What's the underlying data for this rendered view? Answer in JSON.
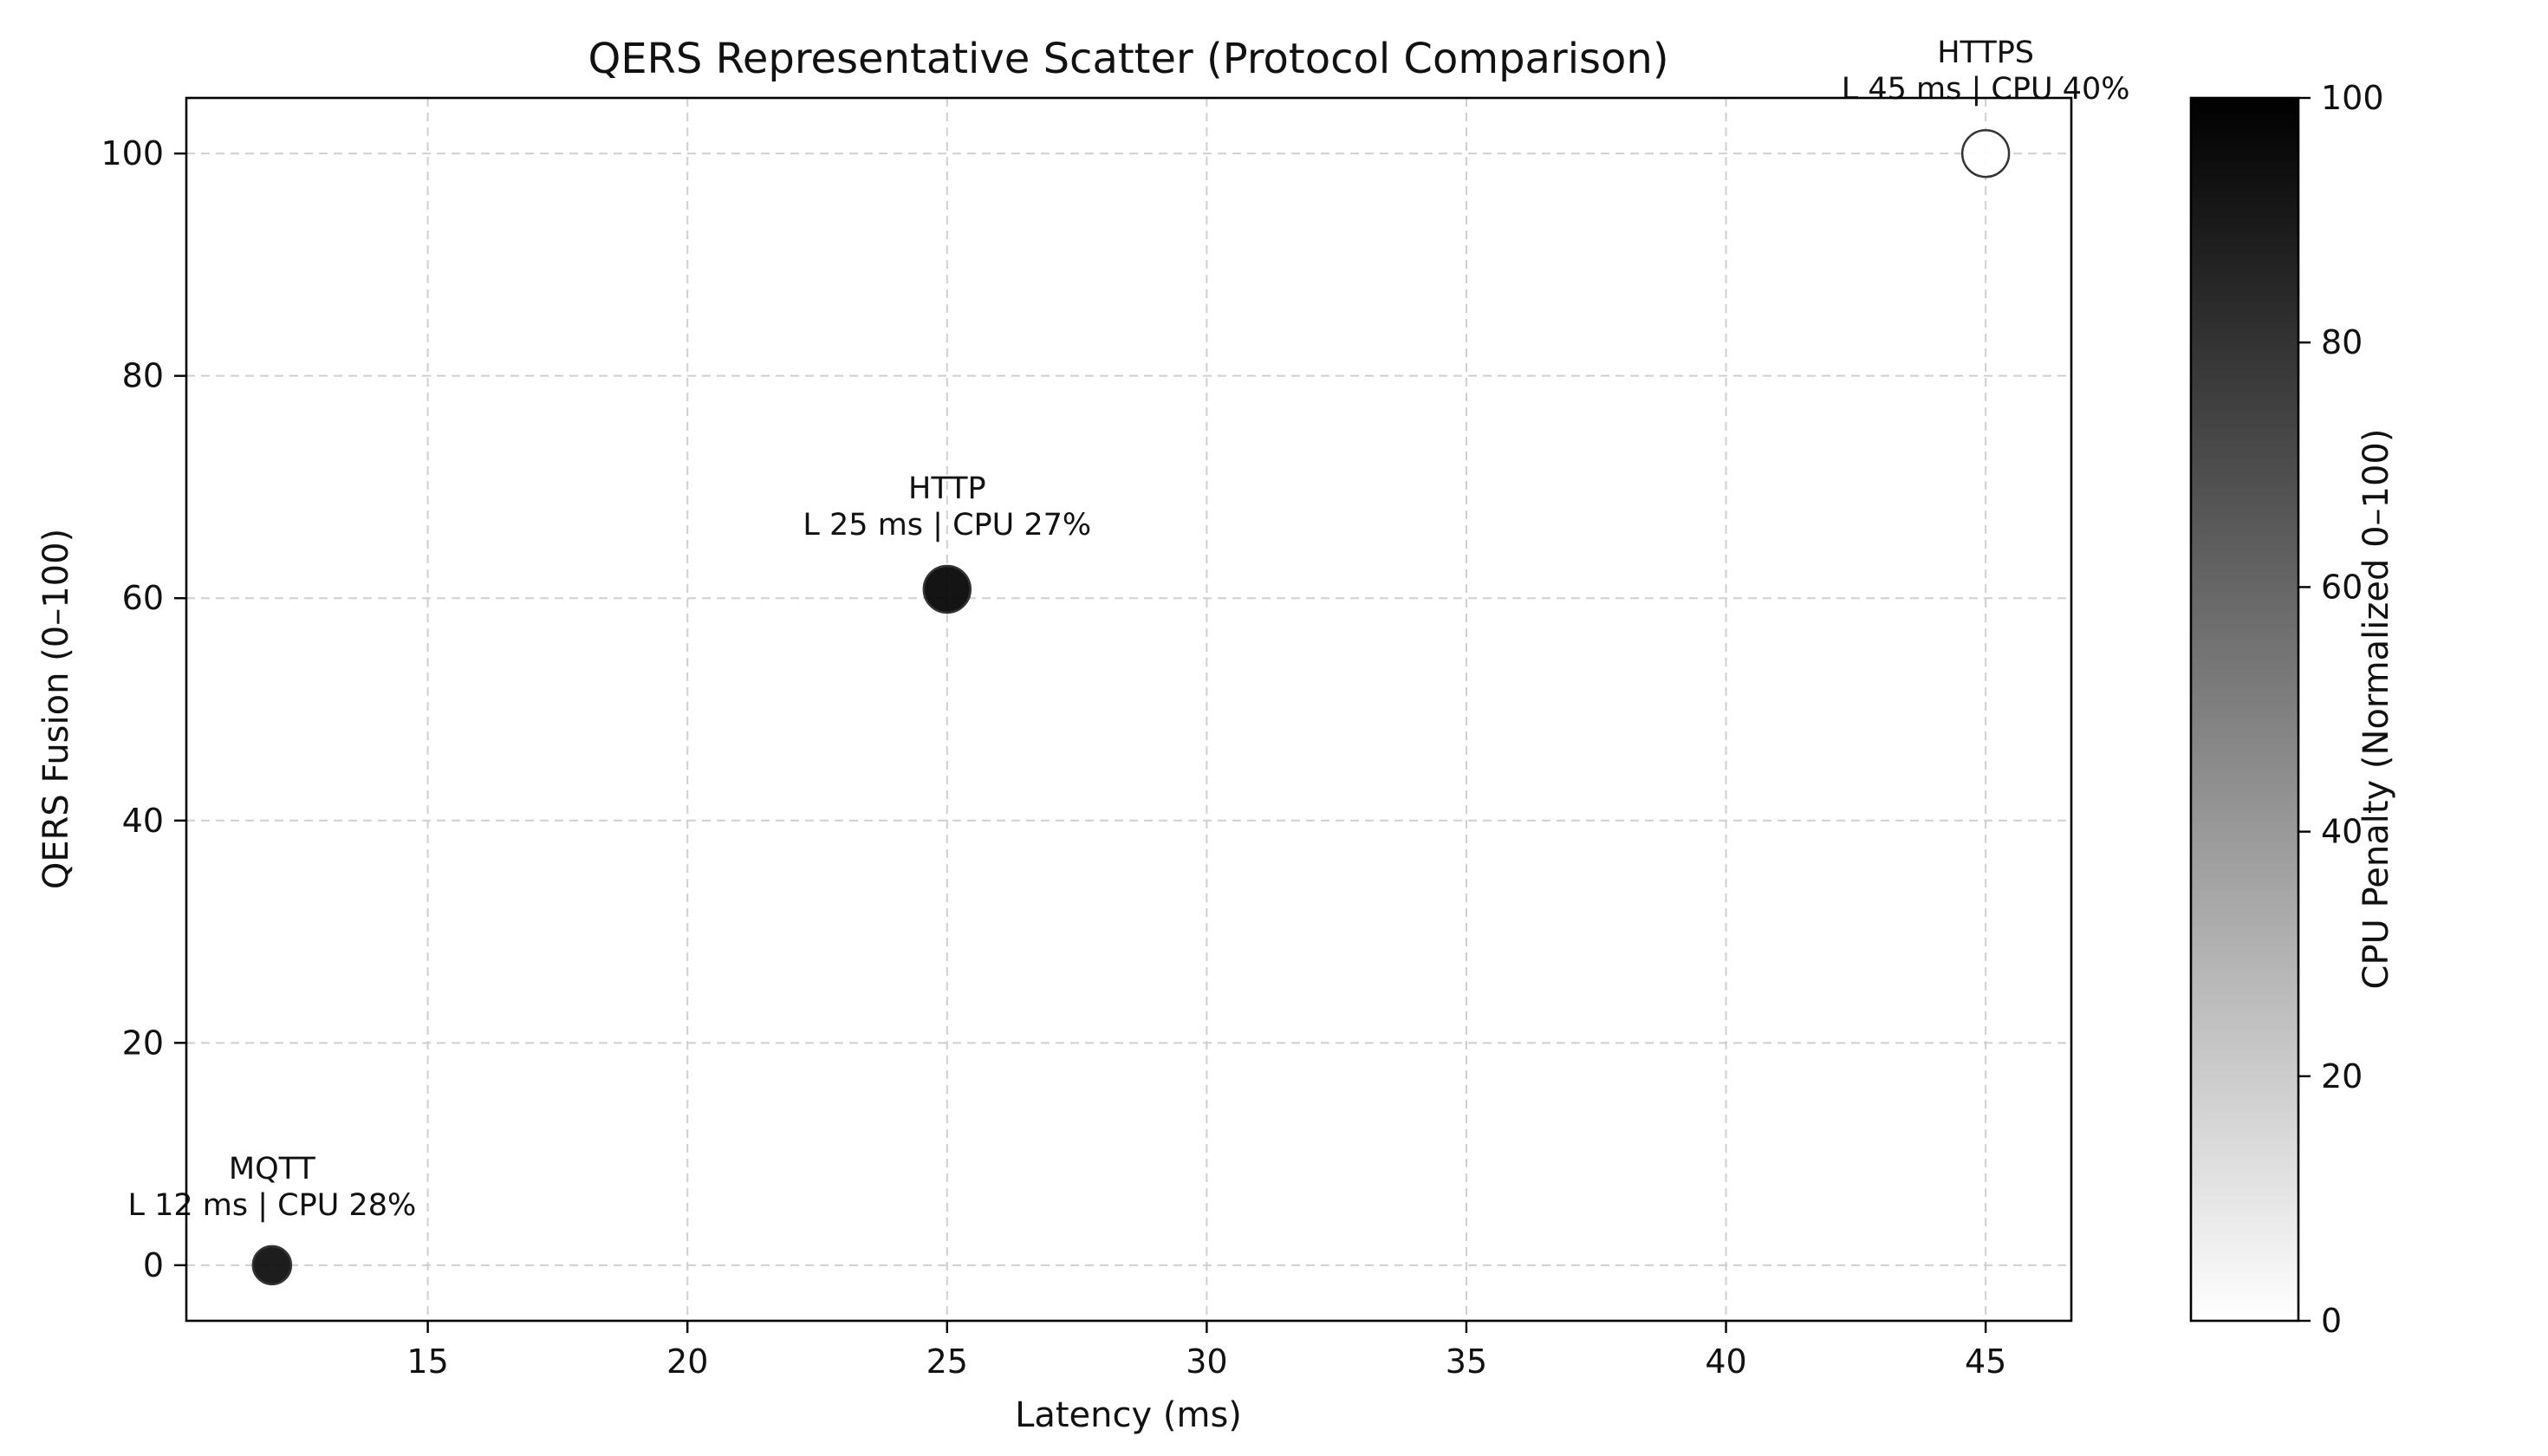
{
  "chart_data": {
    "type": "scatter",
    "title": "QERS Representative Scatter (Protocol Comparison)",
    "xlabel": "Latency (ms)",
    "ylabel": "QERS Fusion (0–100)",
    "xlim": [
      10.35,
      46.65
    ],
    "ylim": [
      -5,
      105
    ],
    "xticks": [
      15,
      20,
      25,
      30,
      35,
      40,
      45
    ],
    "yticks": [
      0,
      20,
      40,
      60,
      80,
      100
    ],
    "grid": true,
    "points": [
      {
        "name": "MQTT",
        "x": 12,
        "y": 0,
        "cpu_percent": 28,
        "cpu_penalty": 96,
        "size": 1,
        "annotation": [
          "MQTT",
          "L 12 ms | CPU 28%"
        ]
      },
      {
        "name": "HTTP",
        "x": 25,
        "y": 60.8,
        "cpu_percent": 27,
        "cpu_penalty": 100,
        "size": 1.5,
        "annotation": [
          "HTTP",
          "L 25 ms | CPU 27%"
        ]
      },
      {
        "name": "HTTPS",
        "x": 45,
        "y": 100,
        "cpu_percent": 40,
        "cpu_penalty": 0,
        "size": 1.5,
        "annotation": [
          "HTTPS",
          "L 45 ms | CPU 40%"
        ]
      }
    ],
    "colorbar": {
      "label": "CPU Penalty (Normalized 0–100)",
      "range": [
        0,
        100
      ],
      "ticks": [
        0,
        20,
        40,
        60,
        80,
        100
      ],
      "colormap": [
        "#ffffff",
        "#000000"
      ]
    }
  }
}
